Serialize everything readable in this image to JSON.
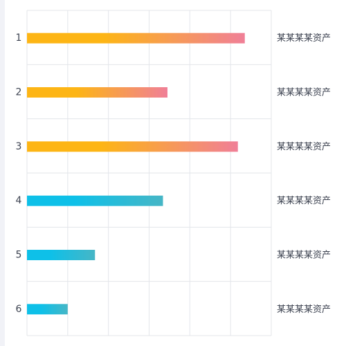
{
  "chart_data": {
    "type": "bar",
    "orientation": "horizontal",
    "categories": [
      "1",
      "2",
      "3",
      "4",
      "5",
      "6"
    ],
    "values": [
      5.35,
      3.45,
      5.18,
      3.34,
      1.67,
      1.0
    ],
    "xlim": [
      0,
      6
    ],
    "grid": true,
    "right_labels": [
      "某某某某资产",
      "某某某某资产",
      "某某某某资产",
      "某某某某资产",
      "某某某某资产",
      "某某某某资产"
    ],
    "bar_colors": [
      [
        "#fdb515",
        "#f07f97"
      ],
      [
        "#fdb515",
        "#f07f97"
      ],
      [
        "#fdb515",
        "#f07f97"
      ],
      [
        "#0ec0e8",
        "#46b6c6"
      ],
      [
        "#0ec0e8",
        "#46b6c6"
      ],
      [
        "#0ec0e8",
        "#46b6c6"
      ]
    ],
    "grid_color": "#e3e5ea"
  }
}
